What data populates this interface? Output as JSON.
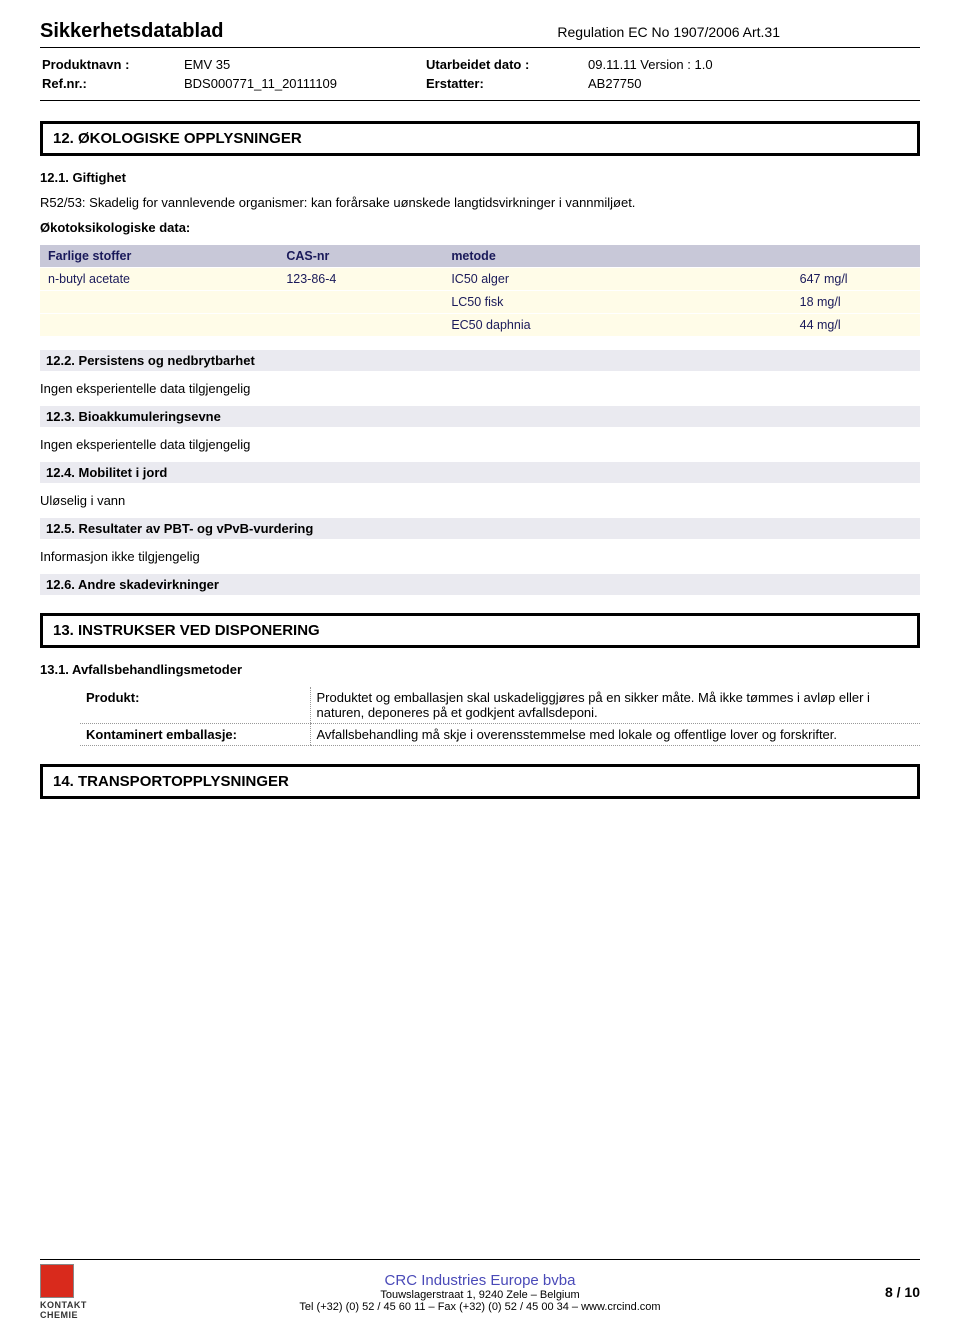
{
  "header": {
    "doc_title": "Sikkerhetsdatablad",
    "regulation": "Regulation EC No 1907/2006 Art.31",
    "meta": {
      "product_label": "Produktnavn :",
      "product_value": "EMV 35",
      "ref_label": "Ref.nr.:",
      "ref_value": "BDS000771_11_20111109",
      "date_label": "Utarbeidet dato :",
      "date_value": "09.11.11 Version : 1.0",
      "replaces_label": "Erstatter:",
      "replaces_value": "AB27750"
    }
  },
  "section12": {
    "banner": "12. ØKOLOGISKE OPPLYSNINGER",
    "s1_head": "12.1. Giftighet",
    "s1_text": "R52/53: Skadelig for vannlevende organismer: kan forårsake uønskede langtidsvirkninger i vannmiljøet.",
    "eco_label": "Økotoksikologiske data:",
    "table": {
      "headers": [
        "Farlige stoffer",
        "CAS-nr",
        "metode",
        ""
      ],
      "rows": [
        [
          "n-butyl acetate",
          "123-86-4",
          "IC50 alger",
          "647 mg/l"
        ],
        [
          "",
          "",
          "LC50 fisk",
          "18 mg/l"
        ],
        [
          "",
          "",
          "EC50 daphnia",
          "44 mg/l"
        ]
      ],
      "header_bg": "#c8c8d8",
      "header_color": "#1a1a5a",
      "cell_bg": "#fffce8",
      "cell_color": "#1a1a5a"
    },
    "s2_head": "12.2. Persistens og nedbrytbarhet",
    "s2_text": "Ingen eksperientelle data tilgjengelig",
    "s3_head": "12.3. Bioakkumuleringsevne",
    "s3_text": "Ingen eksperientelle data tilgjengelig",
    "s4_head": "12.4. Mobilitet i jord",
    "s4_text": "Uløselig i vann",
    "s5_head": "12.5. Resultater av PBT- og vPvB-vurdering",
    "s5_text": "Informasjon ikke tilgjengelig",
    "s6_head": "12.6. Andre skadevirkninger"
  },
  "section13": {
    "banner": "13. INSTRUKSER VED DISPONERING",
    "s1_head": "13.1. Avfallsbehandlingsmetoder",
    "rows": [
      {
        "label": "Produkt:",
        "value": "Produktet og emballasjen skal uskadeliggjøres på en sikker måte. Må ikke tømmes i avløp eller i naturen, deponeres på et godkjent avfallsdeponi."
      },
      {
        "label": "Kontaminert emballasje:",
        "value": "Avfallsbehandling må skje i overensstemmelse med lokale og offentlige lover og forskrifter."
      }
    ]
  },
  "section14": {
    "banner": "14. TRANSPORTOPPLYSNINGER"
  },
  "footer": {
    "logo_top": "KONTAKT",
    "logo_bottom": "CHEMIE",
    "company": "CRC Industries Europe bvba",
    "address": "Touwslagerstraat 1,  9240 Zele – Belgium",
    "contact": "Tel (+32) (0) 52 / 45 60 11 – Fax (+32) (0) 52 / 45 00 34 – www.crcind.com",
    "page": "8 / 10",
    "logo_color": "#d92a1c"
  }
}
